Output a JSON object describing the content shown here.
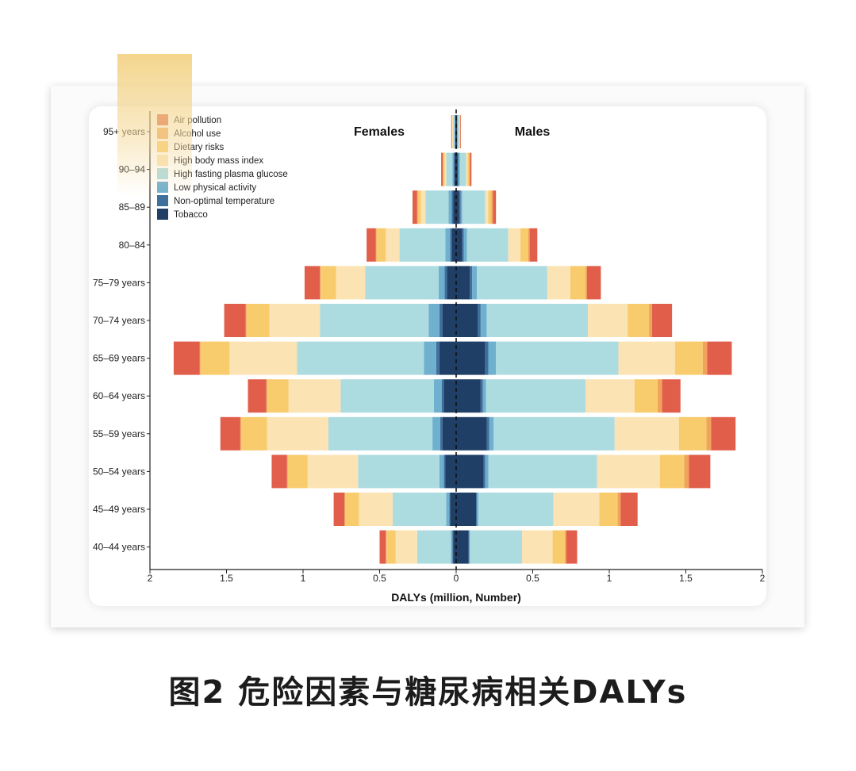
{
  "caption": "图2 危险因素与糖尿病相关DALYs",
  "chart_data": {
    "type": "bar",
    "orientation": "horizontal-population-pyramid",
    "xlabel": "DALYs (million, Number)",
    "xlim": [
      -2,
      2
    ],
    "x_ticks": [
      -2,
      -1.5,
      -1,
      -0.5,
      0,
      0.5,
      1,
      1.5,
      2
    ],
    "x_tick_labels": [
      "2",
      "1.5",
      "1",
      "0.5",
      "0",
      "0.5",
      "1",
      "1.5",
      "2"
    ],
    "sex_labels": {
      "left": "Females",
      "right": "Males"
    },
    "legend_position": "top-left",
    "categories": [
      "95+ years",
      "90–94",
      "85–89",
      "80–84",
      "75–79 years",
      "70–74 years",
      "65–69 years",
      "60–64 years",
      "55–59 years",
      "50–54 years",
      "45–49 years",
      "40–44 years"
    ],
    "series": [
      {
        "name": "Tobacco",
        "color": "#1f3f67",
        "female": [
          0.005,
          0.01,
          0.02,
          0.03,
          0.06,
          0.09,
          0.11,
          0.08,
          0.09,
          0.07,
          0.04,
          0.02
        ],
        "male": [
          0.005,
          0.01,
          0.02,
          0.04,
          0.09,
          0.14,
          0.19,
          0.16,
          0.2,
          0.18,
          0.13,
          0.08
        ]
      },
      {
        "name": "Non-optimal temperature",
        "color": "#3f6f9c",
        "female": [
          0.002,
          0.005,
          0.01,
          0.01,
          0.015,
          0.02,
          0.02,
          0.015,
          0.015,
          0.01,
          0.005,
          0.005
        ],
        "male": [
          0.002,
          0.005,
          0.01,
          0.01,
          0.015,
          0.02,
          0.02,
          0.015,
          0.015,
          0.01,
          0.005,
          0.005
        ]
      },
      {
        "name": "Low physical activity",
        "color": "#6fb0ce",
        "female": [
          0.003,
          0.01,
          0.02,
          0.03,
          0.04,
          0.07,
          0.08,
          0.05,
          0.05,
          0.03,
          0.02,
          0.01
        ],
        "male": [
          0.003,
          0.01,
          0.01,
          0.02,
          0.03,
          0.04,
          0.05,
          0.02,
          0.03,
          0.02,
          0.01,
          0.005
        ]
      },
      {
        "name": "High fasting plasma glucose",
        "color": "#acdbe0",
        "female": [
          0.01,
          0.04,
          0.15,
          0.3,
          0.48,
          0.71,
          0.83,
          0.61,
          0.68,
          0.53,
          0.35,
          0.22
        ],
        "male": [
          0.01,
          0.04,
          0.15,
          0.27,
          0.46,
          0.66,
          0.8,
          0.65,
          0.79,
          0.71,
          0.49,
          0.34
        ]
      },
      {
        "name": "High body mass index",
        "color": "#fce3b3",
        "female": [
          0.005,
          0.01,
          0.03,
          0.09,
          0.19,
          0.33,
          0.44,
          0.34,
          0.4,
          0.33,
          0.22,
          0.14
        ],
        "male": [
          0.003,
          0.01,
          0.02,
          0.08,
          0.15,
          0.26,
          0.37,
          0.32,
          0.42,
          0.41,
          0.3,
          0.2
        ]
      },
      {
        "name": "Dietary risks",
        "color": "#f8cc6c",
        "female": [
          0.003,
          0.01,
          0.02,
          0.06,
          0.1,
          0.15,
          0.19,
          0.14,
          0.17,
          0.13,
          0.09,
          0.06
        ],
        "male": [
          0.003,
          0.01,
          0.02,
          0.05,
          0.1,
          0.14,
          0.18,
          0.15,
          0.18,
          0.16,
          0.12,
          0.08
        ]
      },
      {
        "name": "Alcohol use",
        "color": "#f0a35c",
        "female": [
          0.001,
          0.003,
          0.005,
          0.005,
          0.005,
          0.005,
          0.005,
          0.005,
          0.005,
          0.005,
          0.005,
          0.005
        ],
        "male": [
          0.002,
          0.005,
          0.01,
          0.01,
          0.01,
          0.02,
          0.03,
          0.03,
          0.03,
          0.03,
          0.02,
          0.01
        ]
      },
      {
        "name": "Air pollution",
        "color": "#e15e4b",
        "female": [
          0.003,
          0.01,
          0.03,
          0.06,
          0.1,
          0.14,
          0.17,
          0.12,
          0.13,
          0.1,
          0.07,
          0.04
        ],
        "male": [
          0.003,
          0.01,
          0.02,
          0.05,
          0.09,
          0.13,
          0.16,
          0.12,
          0.16,
          0.14,
          0.11,
          0.07
        ]
      }
    ],
    "legend_order": [
      "Air pollution",
      "Alcohol use",
      "Dietary risks",
      "High body mass index",
      "High fasting plasma glucose",
      "Low physical activity",
      "Non-optimal temperature",
      "Tobacco"
    ]
  }
}
